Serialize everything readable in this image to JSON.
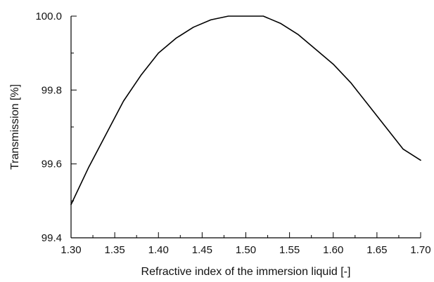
{
  "chart_data": {
    "type": "line",
    "xlabel": "Refractive index of the immersion liquid [-]",
    "ylabel": "Transmission [%]",
    "xlim": [
      1.3,
      1.7
    ],
    "ylim": [
      99.4,
      100.0
    ],
    "x_ticks": [
      1.3,
      1.35,
      1.4,
      1.45,
      1.5,
      1.55,
      1.6,
      1.65,
      1.7
    ],
    "x_tick_labels": [
      "1.30",
      "1.35",
      "1.40",
      "1.45",
      "1.50",
      "1.55",
      "1.60",
      "1.65",
      "1.70"
    ],
    "y_ticks": [
      99.4,
      99.6,
      99.8,
      100.0
    ],
    "y_tick_labels": [
      "99.4",
      "99.6",
      "99.8",
      "100.0"
    ],
    "grid": false,
    "legend": "none",
    "series": [
      {
        "color": "#000000",
        "x": [
          1.3,
          1.32,
          1.34,
          1.36,
          1.38,
          1.4,
          1.42,
          1.44,
          1.46,
          1.48,
          1.5,
          1.52,
          1.54,
          1.56,
          1.58,
          1.6,
          1.62,
          1.64,
          1.66,
          1.68,
          1.7
        ],
        "y": [
          99.49,
          99.59,
          99.68,
          99.77,
          99.84,
          99.9,
          99.94,
          99.97,
          99.99,
          100.0,
          100.0,
          100.0,
          99.98,
          99.95,
          99.91,
          99.87,
          99.82,
          99.76,
          99.7,
          99.64,
          99.61
        ]
      }
    ]
  }
}
